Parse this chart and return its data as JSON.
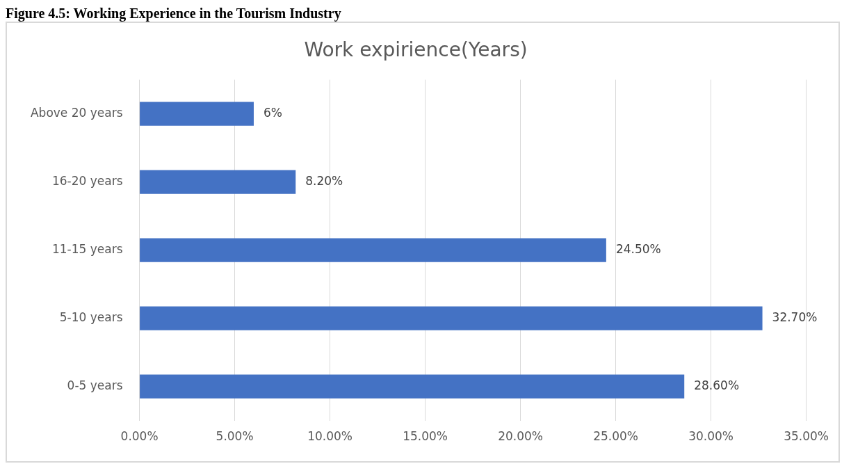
{
  "chart_data": {
    "type": "bar",
    "orientation": "horizontal",
    "title": "Work expirience(Years)",
    "annotations": [
      "Figure 4.5: Working Experience in the Tourism Industry"
    ],
    "categories": [
      "Above 20 years",
      "16-20 years",
      "11-15 years",
      "5-10 years",
      "0-5 years"
    ],
    "values": [
      6,
      8.2,
      24.5,
      32.7,
      28.6
    ],
    "value_labels": [
      "6%",
      "8.20%",
      "24.50%",
      "32.70%",
      "28.60%"
    ],
    "color": "#4472c4",
    "xlim": [
      0,
      35
    ],
    "xticks": [
      {
        "value": 0,
        "label": "0.00%"
      },
      {
        "value": 5,
        "label": "5.00%"
      },
      {
        "value": 10,
        "label": "10.00%"
      },
      {
        "value": 15,
        "label": "15.00%"
      },
      {
        "value": 20,
        "label": "20.00%"
      },
      {
        "value": 25,
        "label": "25.00%"
      },
      {
        "value": 30,
        "label": "30.00%"
      },
      {
        "value": 35,
        "label": "35.00%"
      }
    ],
    "grid": "x",
    "legend": false
  }
}
